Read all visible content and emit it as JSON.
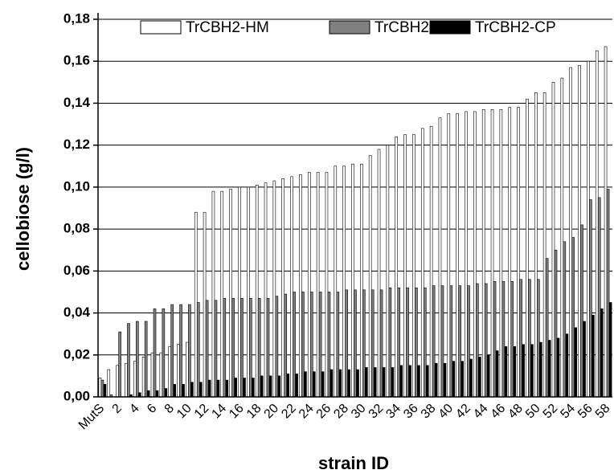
{
  "chart_data": {
    "type": "bar",
    "x_label": "strain ID",
    "y_label": "cellobiose (g/l)",
    "categories": [
      "MutS",
      null,
      "2",
      null,
      "4",
      null,
      "6",
      null,
      "8",
      null,
      "10",
      null,
      "12",
      null,
      "14",
      null,
      "16",
      null,
      "18",
      null,
      "20",
      null,
      "22",
      null,
      "24",
      null,
      "26",
      null,
      "28",
      null,
      "30",
      null,
      "32",
      null,
      "34",
      null,
      "36",
      null,
      "38",
      null,
      "40",
      null,
      "42",
      null,
      "44",
      null,
      "46",
      null,
      "48",
      null,
      "50",
      null,
      "52",
      null,
      "54",
      null,
      "56",
      null,
      "58"
    ],
    "series": [
      {
        "name": "TrCBH2-HM",
        "color": "#ffffff",
        "values": [
          0.009,
          0.013,
          0.015,
          0.016,
          0.017,
          0.019,
          0.021,
          0.021,
          0.024,
          0.025,
          0.026,
          0.088,
          0.088,
          0.098,
          0.098,
          0.099,
          0.1,
          0.1,
          0.101,
          0.102,
          0.103,
          0.104,
          0.105,
          0.106,
          0.107,
          0.107,
          0.107,
          0.11,
          0.11,
          0.111,
          0.111,
          0.115,
          0.118,
          0.12,
          0.124,
          0.125,
          0.125,
          0.128,
          0.129,
          0.133,
          0.135,
          0.135,
          0.136,
          0.136,
          0.137,
          0.137,
          0.137,
          0.138,
          0.138,
          0.142,
          0.145,
          0.145,
          0.15,
          0.152,
          0.157,
          0.158,
          0.16,
          0.165,
          0.167
        ]
      },
      {
        "name": "TrCBH2-wt",
        "color": "#808080",
        "values": [
          0.008,
          0.001,
          0.031,
          0.035,
          0.036,
          0.036,
          0.042,
          0.042,
          0.044,
          0.044,
          0.044,
          0.045,
          0.046,
          0.046,
          0.047,
          0.047,
          0.047,
          0.047,
          0.047,
          0.047,
          0.048,
          0.049,
          0.05,
          0.05,
          0.05,
          0.05,
          0.05,
          0.05,
          0.051,
          0.051,
          0.051,
          0.051,
          0.051,
          0.052,
          0.052,
          0.052,
          0.052,
          0.052,
          0.053,
          0.053,
          0.053,
          0.053,
          0.053,
          0.054,
          0.054,
          0.055,
          0.055,
          0.055,
          0.056,
          0.056,
          0.056,
          0.066,
          0.07,
          0.074,
          0.076,
          0.082,
          0.094,
          0.095,
          0.099
        ]
      },
      {
        "name": "TrCBH2-CP",
        "color": "#000000",
        "values": [
          0.006,
          0.0,
          0.0,
          0.001,
          0.002,
          0.003,
          0.003,
          0.004,
          0.006,
          0.006,
          0.007,
          0.007,
          0.008,
          0.008,
          0.008,
          0.009,
          0.009,
          0.009,
          0.01,
          0.01,
          0.01,
          0.011,
          0.011,
          0.012,
          0.012,
          0.012,
          0.013,
          0.013,
          0.013,
          0.013,
          0.014,
          0.014,
          0.014,
          0.014,
          0.015,
          0.015,
          0.015,
          0.015,
          0.016,
          0.016,
          0.017,
          0.017,
          0.018,
          0.019,
          0.02,
          0.022,
          0.024,
          0.024,
          0.025,
          0.025,
          0.026,
          0.027,
          0.028,
          0.03,
          0.033,
          0.036,
          0.039,
          0.042,
          0.045
        ]
      }
    ],
    "ylim": [
      0,
      0.18
    ],
    "yticks": [
      {
        "value": 0,
        "label": "0,00"
      },
      {
        "value": 0.02,
        "label": "0,02"
      },
      {
        "value": 0.04,
        "label": "0,04"
      },
      {
        "value": 0.06,
        "label": "0,06"
      },
      {
        "value": 0.08,
        "label": "0,08"
      },
      {
        "value": 0.1,
        "label": "0,10"
      },
      {
        "value": 0.12,
        "label": "0,12"
      },
      {
        "value": 0.14,
        "label": "0,14"
      },
      {
        "value": 0.16,
        "label": "0,16"
      },
      {
        "value": 0.18,
        "label": "0,18"
      }
    ],
    "grid": true,
    "legend": "top"
  }
}
